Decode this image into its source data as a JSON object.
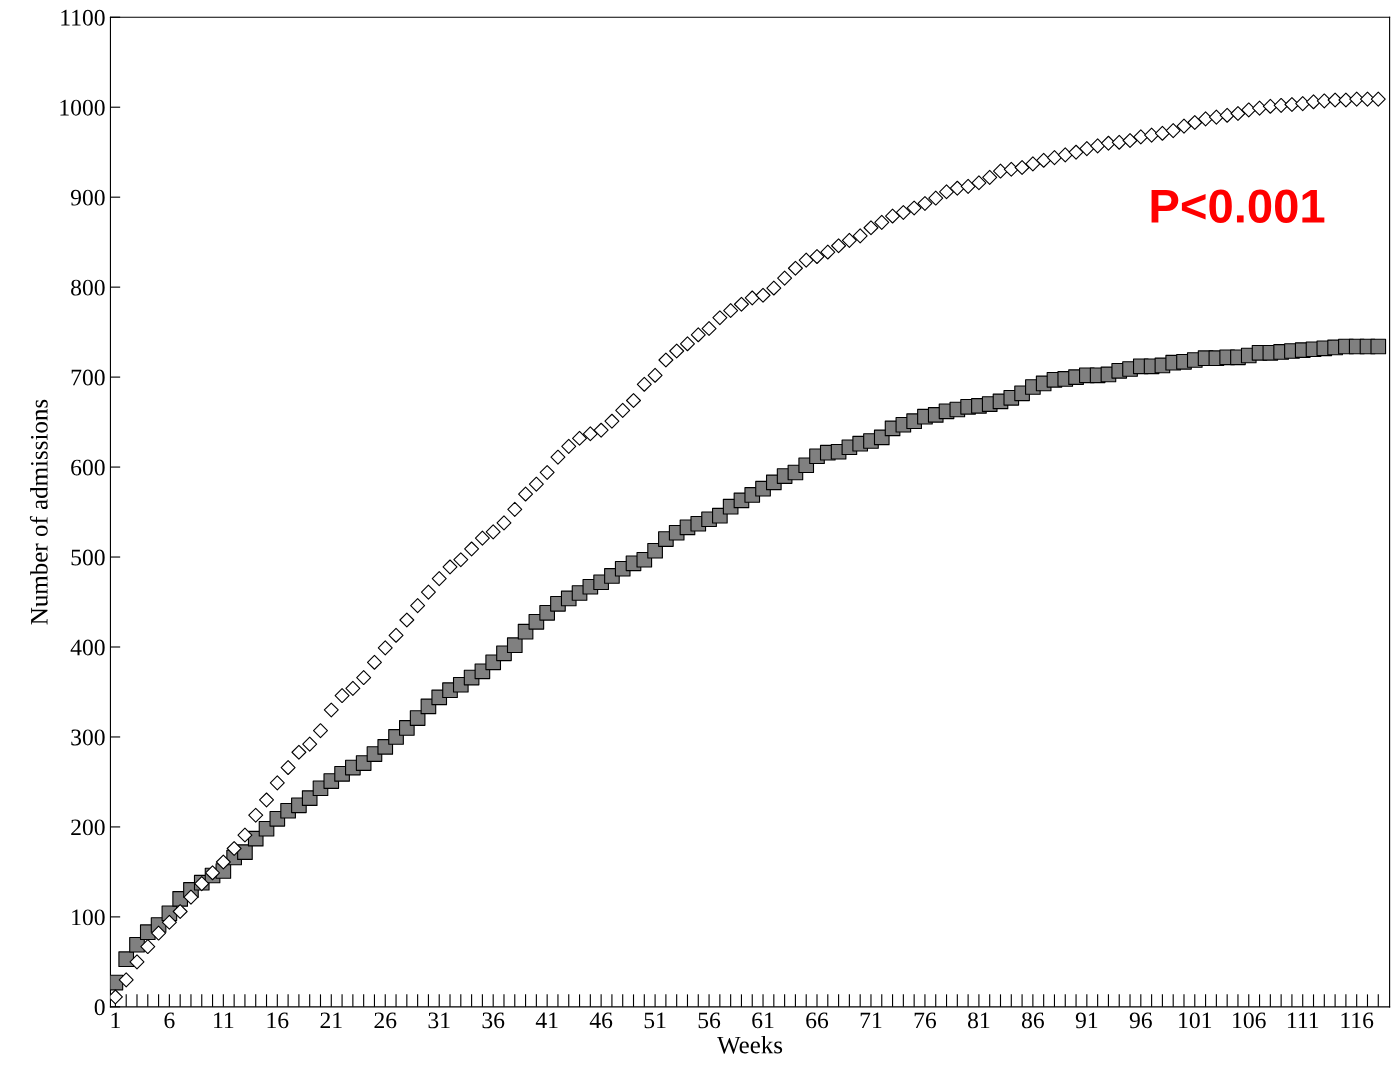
{
  "chart_data": {
    "type": "scatter",
    "xlabel": "Weeks",
    "ylabel": "Number of admissions",
    "categories": [
      "1",
      null,
      null,
      null,
      null,
      "6",
      null,
      null,
      null,
      null,
      "11",
      null,
      null,
      null,
      null,
      "16",
      null,
      null,
      null,
      null,
      "21",
      null,
      null,
      null,
      null,
      "26",
      null,
      null,
      null,
      null,
      "31",
      null,
      null,
      null,
      null,
      "36",
      null,
      null,
      null,
      null,
      "41",
      null,
      null,
      null,
      null,
      "46",
      null,
      null,
      null,
      null,
      "51",
      null,
      null,
      null,
      null,
      "56",
      null,
      null,
      null,
      null,
      "61",
      null,
      null,
      null,
      null,
      "66",
      null,
      null,
      null,
      null,
      "71",
      null,
      null,
      null,
      null,
      "76",
      null,
      null,
      null,
      null,
      "81",
      null,
      null,
      null,
      null,
      "86",
      null,
      null,
      null,
      null,
      "91",
      null,
      null,
      null,
      null,
      "96",
      null,
      null,
      null,
      null,
      "101",
      null,
      null,
      null,
      null,
      "106",
      null,
      null,
      null,
      null,
      "111",
      null,
      null,
      null,
      null,
      "116",
      null,
      null
    ],
    "ylim": [
      0,
      1100
    ],
    "yticks": [
      0,
      100,
      200,
      300,
      400,
      500,
      600,
      700,
      800,
      900,
      1000,
      1100
    ],
    "grid": false,
    "legend": false,
    "annotations": [
      "P<0.001"
    ],
    "series": [
      {
        "color": "#ffffff",
        "marker": "diamond",
        "values": [
          11,
          30,
          50,
          67,
          82,
          94,
          106,
          122,
          137,
          149,
          161,
          176,
          191,
          213,
          230,
          249,
          266,
          283,
          292,
          307,
          330,
          346,
          354,
          366,
          383,
          399,
          413,
          430,
          446,
          461,
          476,
          489,
          497,
          509,
          521,
          528,
          538,
          553,
          570,
          581,
          594,
          611,
          623,
          632,
          637,
          641,
          651,
          663,
          674,
          692,
          702,
          719,
          729,
          737,
          747,
          754,
          766,
          774,
          781,
          788,
          791,
          799,
          810,
          821,
          830,
          834,
          839,
          846,
          852,
          857,
          866,
          872,
          879,
          883,
          888,
          893,
          899,
          906,
          910,
          912,
          916,
          922,
          929,
          931,
          933,
          937,
          941,
          944,
          947,
          950,
          954,
          957,
          960,
          961,
          963,
          967,
          969,
          971,
          974,
          979,
          983,
          987,
          989,
          991,
          993,
          997,
          999,
          1001,
          1002,
          1003,
          1004,
          1006,
          1007,
          1008,
          1008,
          1009,
          1009,
          1009
        ]
      },
      {
        "color": "#808080",
        "marker": "square",
        "values": [
          27,
          53,
          69,
          83,
          91,
          104,
          120,
          130,
          138,
          146,
          151,
          166,
          172,
          187,
          198,
          209,
          218,
          224,
          232,
          243,
          251,
          259,
          266,
          271,
          281,
          289,
          300,
          310,
          321,
          334,
          344,
          352,
          358,
          366,
          373,
          383,
          393,
          402,
          417,
          428,
          438,
          448,
          454,
          460,
          467,
          472,
          479,
          487,
          493,
          497,
          507,
          520,
          527,
          533,
          537,
          542,
          546,
          556,
          563,
          569,
          576,
          583,
          590,
          594,
          602,
          612,
          616,
          617,
          622,
          626,
          629,
          633,
          643,
          647,
          651,
          656,
          658,
          662,
          664,
          667,
          668,
          670,
          673,
          677,
          682,
          689,
          693,
          697,
          698,
          700,
          702,
          702,
          703,
          707,
          709,
          712,
          712,
          713,
          716,
          717,
          719,
          721,
          721,
          722,
          722,
          724,
          727,
          727,
          728,
          729,
          730,
          731,
          732,
          733,
          734,
          734,
          734,
          734
        ]
      }
    ]
  }
}
